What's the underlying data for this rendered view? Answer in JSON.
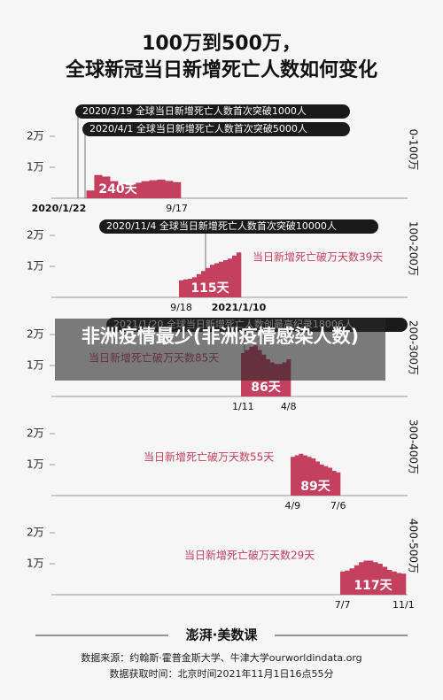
{
  "title": [
    "100万到500万，",
    "全球新冠当日新增死亡人数如何变化"
  ],
  "chart_data": [
    {
      "type": "bar",
      "color": "#c4405f",
      "ylim": [
        0,
        30000
      ],
      "yticks": [
        {
          "value": 10000,
          "label": "1万"
        },
        {
          "value": 20000,
          "label": "2万"
        }
      ],
      "categories": [
        "2020/1/22",
        null,
        null,
        null,
        null,
        null,
        null,
        null,
        null,
        null,
        null,
        null,
        null,
        null,
        null,
        "9/17"
      ],
      "values": [
        0,
        0,
        0,
        100,
        2500,
        7500,
        7000,
        5500,
        4500,
        4200,
        5000,
        5500,
        5800,
        6000,
        5600,
        5200
      ],
      "days_label": "240天",
      "range_label": "0-100万",
      "annotations": [
        "2020/3/19  全球当日新增死亡人数首次突破1000人",
        "2020/4/1  全球当日新增死亡人数首次突破5000人"
      ]
    },
    {
      "type": "bar",
      "color": "#c4405f",
      "ylim": [
        0,
        30000
      ],
      "yticks": [
        {
          "value": 10000,
          "label": "1万"
        },
        {
          "value": 20000,
          "label": "2万"
        }
      ],
      "categories": [
        "9/18",
        null,
        null,
        null,
        null,
        null,
        null,
        null,
        null,
        null,
        null,
        null,
        null,
        "2021/1/10"
      ],
      "values": [
        5500,
        5800,
        6000,
        6500,
        7500,
        8500,
        9500,
        10500,
        11000,
        11500,
        12000,
        12500,
        13500,
        14500
      ],
      "days_label": "115天",
      "range_label": "100-200万",
      "note": "当日新增死亡破万天数39天",
      "annotations": [
        "2020/11/4  全球当日新增死亡人数首次突破10000人"
      ]
    },
    {
      "type": "bar",
      "color": "#c4405f",
      "ylim": [
        0,
        30000
      ],
      "yticks": [
        {
          "value": 10000,
          "label": "1万"
        },
        {
          "value": 20000,
          "label": "2万"
        }
      ],
      "categories": [
        "1/11",
        null,
        null,
        null,
        null,
        null,
        null,
        null,
        null,
        null,
        null,
        "4/8"
      ],
      "values": [
        14000,
        15000,
        16000,
        16500,
        15000,
        13500,
        12000,
        11000,
        10500,
        10500,
        11000,
        12000
      ],
      "days_label": "86天",
      "range_label": "200-300万",
      "note": "当日新增死亡破万天数85天",
      "annotations": [
        "2021/1/20  全球当日新增死亡人数创最高纪录18006人"
      ]
    },
    {
      "type": "bar",
      "color": "#c4405f",
      "ylim": [
        0,
        30000
      ],
      "yticks": [
        {
          "value": 10000,
          "label": "1万"
        },
        {
          "value": 20000,
          "label": "2万"
        }
      ],
      "categories": [
        "4/9",
        null,
        null,
        null,
        null,
        null,
        null,
        null,
        null,
        null,
        null,
        "7/6"
      ],
      "values": [
        12500,
        13000,
        13500,
        13000,
        12500,
        12000,
        11000,
        10000,
        9500,
        9000,
        8000,
        7500
      ],
      "days_label": "89天",
      "range_label": "300-400万",
      "note": "当日新增死亡破万天数55天"
    },
    {
      "type": "bar",
      "color": "#c4405f",
      "ylim": [
        0,
        30000
      ],
      "yticks": [
        {
          "value": 10000,
          "label": "1万"
        },
        {
          "value": 20000,
          "label": "2万"
        }
      ],
      "categories": [
        "7/7",
        null,
        null,
        null,
        null,
        null,
        null,
        null,
        null,
        null,
        null,
        null,
        null,
        "11/1"
      ],
      "values": [
        7500,
        7800,
        8500,
        9500,
        10500,
        11000,
        11000,
        10500,
        10000,
        9000,
        8000,
        7500,
        7000,
        6800
      ],
      "days_label": "117天",
      "range_label": "400-500万",
      "note": "当日新增死亡破万天数29天"
    }
  ],
  "footer": {
    "logo": "澎湃·美数课",
    "source": "数据来源：约翰斯·霍普金斯大学、牛津大学ourworldindata.org",
    "time": "数据获取时间：北京时间2021年11月1日16点55分"
  },
  "overlay_text": "非洲疫情最少(非洲疫情感染人数)"
}
